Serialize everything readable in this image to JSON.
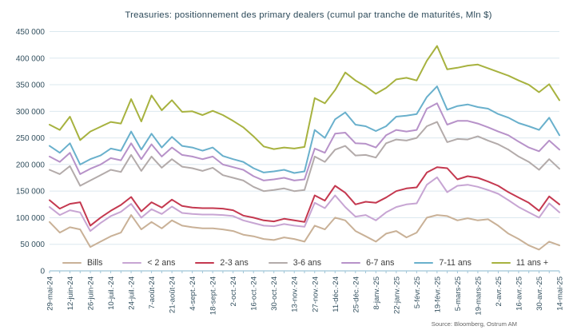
{
  "chart_data": {
    "type": "line",
    "title": "Treasuries: positionnement des primary dealers (cumul par tranche de maturités, Mln $)",
    "source": "Source: Bloomberg, Ostrum AM",
    "unit": "Mln $",
    "grid": true,
    "legend_position": "bottom-inside",
    "y_min": 0,
    "y_max": 450000,
    "y_ticks": [
      {
        "v": 450000,
        "label": "450 000"
      },
      {
        "v": 400000,
        "label": "400 000"
      },
      {
        "v": 350000,
        "label": "350 000"
      },
      {
        "v": 300000,
        "label": "300 000"
      },
      {
        "v": 250000,
        "label": "250 000"
      },
      {
        "v": 200000,
        "label": "200 000"
      },
      {
        "v": 150000,
        "label": "150 000"
      },
      {
        "v": 100000,
        "label": "100 000"
      },
      {
        "v": 50000,
        "label": "50 000"
      },
      {
        "v": 0,
        "label": "0"
      }
    ],
    "x_tick_labels": [
      "29-mai-24",
      "12-juin-24",
      "26-juin-24",
      "10-juil.-24",
      "24-juil.-24",
      "7-août-24",
      "21-août-24",
      "4-sept.-24",
      "18-sept.-24",
      "2-oct.-24",
      "16-oct.-24",
      "30-oct.-24",
      "13-nov.-24",
      "27-nov.-24",
      "11-déc.-24",
      "25-déc.-24",
      "8-janv.-25",
      "22-janv.-25",
      "5-févr.-25",
      "19-févr.-25",
      "5-mars-25",
      "19-mars-25",
      "2-avr.-25",
      "16-avr.-25",
      "30-avr.-25",
      "14-mai-25"
    ],
    "points_per_label": 2,
    "series": [
      {
        "name": "Bills",
        "color": "#c9b197",
        "values": [
          92000,
          72000,
          82000,
          78000,
          45000,
          55000,
          65000,
          72000,
          105000,
          78000,
          92000,
          80000,
          95000,
          85000,
          82000,
          80000,
          80000,
          78000,
          75000,
          68000,
          65000,
          60000,
          58000,
          63000,
          60000,
          55000,
          85000,
          78000,
          100000,
          95000,
          75000,
          65000,
          55000,
          70000,
          75000,
          63000,
          72000,
          100000,
          105000,
          103000,
          95000,
          99000,
          95000,
          97000,
          85000,
          70000,
          60000,
          48000,
          40000,
          55000,
          48000
        ]
      },
      {
        "name": "< 2 ans",
        "color": "#c7a5d3",
        "values": [
          120000,
          105000,
          114000,
          110000,
          75000,
          90000,
          103000,
          111000,
          126000,
          100000,
          116000,
          107000,
          121000,
          109000,
          107000,
          106000,
          106000,
          105000,
          103000,
          95000,
          90000,
          85000,
          84000,
          88000,
          85000,
          83000,
          128000,
          118000,
          142000,
          120000,
          102000,
          105000,
          95000,
          110000,
          120000,
          125000,
          127000,
          162000,
          176000,
          148000,
          160000,
          162000,
          158000,
          152000,
          145000,
          133000,
          120000,
          110000,
          100000,
          127000,
          110000
        ]
      },
      {
        "name": "2-3 ans",
        "color": "#c4384f",
        "values": [
          133000,
          117000,
          126000,
          129000,
          85000,
          100000,
          113000,
          124000,
          139000,
          112000,
          129000,
          119000,
          134000,
          122000,
          119000,
          118000,
          118000,
          117000,
          114000,
          104000,
          100000,
          95000,
          93000,
          98000,
          95000,
          92000,
          142000,
          132000,
          160000,
          147000,
          125000,
          130000,
          128000,
          138000,
          150000,
          155000,
          157000,
          185000,
          195000,
          193000,
          172000,
          178000,
          175000,
          168000,
          160000,
          148000,
          138000,
          128000,
          113000,
          140000,
          125000
        ]
      },
      {
        "name": "3-6 ans",
        "color": "#b3abaa",
        "values": [
          190000,
          182000,
          197000,
          160000,
          170000,
          180000,
          190000,
          186000,
          218000,
          188000,
          215000,
          194000,
          210000,
          196000,
          193000,
          188000,
          194000,
          180000,
          175000,
          170000,
          158000,
          150000,
          152000,
          155000,
          150000,
          152000,
          215000,
          205000,
          228000,
          235000,
          217000,
          218000,
          213000,
          240000,
          247000,
          245000,
          250000,
          272000,
          280000,
          242000,
          248000,
          247000,
          253000,
          245000,
          238000,
          228000,
          215000,
          205000,
          190000,
          210000,
          192000
        ]
      },
      {
        "name": "6-7 ans",
        "color": "#b792c9",
        "values": [
          215000,
          205000,
          222000,
          182000,
          192000,
          200000,
          212000,
          208000,
          240000,
          210000,
          238000,
          215000,
          232000,
          218000,
          215000,
          210000,
          215000,
          200000,
          195000,
          190000,
          178000,
          170000,
          172000,
          175000,
          170000,
          172000,
          230000,
          222000,
          258000,
          260000,
          240000,
          239000,
          232000,
          255000,
          265000,
          262000,
          265000,
          305000,
          315000,
          275000,
          282000,
          282000,
          277000,
          270000,
          262000,
          255000,
          243000,
          232000,
          225000,
          245000,
          228000
        ]
      },
      {
        "name": "7-11 ans",
        "color": "#69b0cc",
        "values": [
          235000,
          222000,
          240000,
          200000,
          210000,
          217000,
          230000,
          226000,
          262000,
          228000,
          258000,
          232000,
          252000,
          235000,
          232000,
          226000,
          232000,
          216000,
          210000,
          205000,
          193000,
          185000,
          187000,
          190000,
          184000,
          187000,
          265000,
          250000,
          285000,
          298000,
          275000,
          272000,
          263000,
          272000,
          290000,
          292000,
          295000,
          327000,
          347000,
          303000,
          310000,
          313000,
          308000,
          305000,
          295000,
          288000,
          278000,
          272000,
          265000,
          288000,
          255000
        ]
      },
      {
        "name": "11 ans +",
        "color": "#a7b23f",
        "values": [
          275000,
          265000,
          290000,
          246000,
          262000,
          271000,
          280000,
          277000,
          323000,
          281000,
          330000,
          302000,
          321000,
          299000,
          300000,
          293000,
          301000,
          293000,
          282000,
          270000,
          253000,
          234000,
          229000,
          232000,
          230000,
          233000,
          325000,
          315000,
          340000,
          373000,
          358000,
          347000,
          333000,
          344000,
          360000,
          363000,
          358000,
          395000,
          423000,
          379000,
          382000,
          386000,
          388000,
          381000,
          374000,
          367000,
          358000,
          350000,
          336000,
          351000,
          321000
        ]
      }
    ]
  },
  "style": {
    "grid_color": "#dbe8ef",
    "axis_color": "#9fc5d8",
    "tick_text_color": "#33505f",
    "title_color": "#2d4a5a"
  }
}
